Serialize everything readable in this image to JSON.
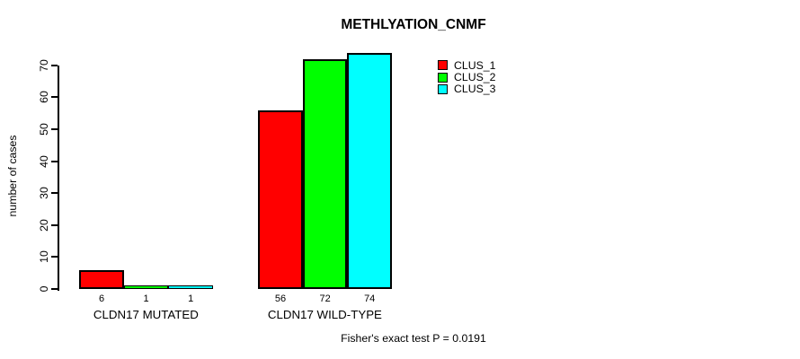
{
  "chart_data": {
    "type": "bar",
    "title": "METHLYATION_CNMF",
    "ylabel": "number of cases",
    "xlabel": "",
    "categories": [
      "CLDN17 MUTATED",
      "CLDN17 WILD-TYPE"
    ],
    "series": [
      {
        "name": "CLUS_1",
        "color": "#ff0000",
        "values": [
          6,
          56
        ]
      },
      {
        "name": "CLUS_2",
        "color": "#00ff00",
        "values": [
          1,
          72
        ]
      },
      {
        "name": "CLUS_3",
        "color": "#00ffff",
        "values": [
          1,
          74
        ]
      }
    ],
    "bar_value_labels": [
      [
        "6",
        "1",
        "1"
      ],
      [
        "56",
        "72",
        "74"
      ]
    ],
    "ylim": [
      0,
      70
    ],
    "yticks": [
      "0",
      "10",
      "20",
      "30",
      "40",
      "50",
      "60",
      "70"
    ],
    "grid": false,
    "legend_position": "top-right",
    "annotation": "Fisher's exact test P = 0.0191",
    "colors": {
      "bar_border": "#000000",
      "text": "#000000",
      "background": "#ffffff"
    }
  }
}
